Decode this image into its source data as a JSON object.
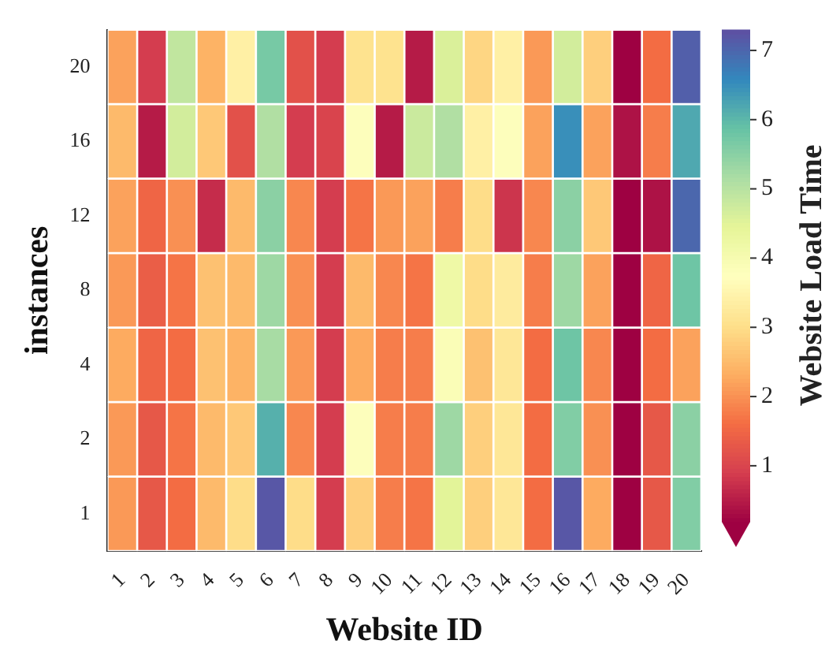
{
  "chart_data": {
    "type": "heatmap",
    "xlabel": "Website ID",
    "ylabel": "instances",
    "clabel": "Website Load Time",
    "categories": [
      "1",
      "2",
      "3",
      "4",
      "5",
      "6",
      "7",
      "8",
      "9",
      "10",
      "11",
      "12",
      "13",
      "14",
      "15",
      "16",
      "17",
      "18",
      "19",
      "20"
    ],
    "y_categories": [
      "20",
      "16",
      "12",
      "8",
      "4",
      "2",
      "1"
    ],
    "cells": [
      [
        2.2,
        0.9,
        4.9,
        2.4,
        3.4,
        5.7,
        1.2,
        0.9,
        3.1,
        3.1,
        0.5,
        4.6,
        2.9,
        3.4,
        2.1,
        4.7,
        2.8,
        0.2,
        1.6,
        7.1
      ],
      [
        2.5,
        0.5,
        4.7,
        2.7,
        1.2,
        5.1,
        0.9,
        1.0,
        3.8,
        0.5,
        4.8,
        5.1,
        3.4,
        3.8,
        2.2,
        6.5,
        2.2,
        0.4,
        1.8,
        6.2
      ],
      [
        2.2,
        1.5,
        2.0,
        0.7,
        2.5,
        5.5,
        1.9,
        0.9,
        1.7,
        2.1,
        2.2,
        1.8,
        3.0,
        0.8,
        1.9,
        5.5,
        2.7,
        0.2,
        0.4,
        7.0
      ],
      [
        2.1,
        1.4,
        1.7,
        2.6,
        2.5,
        5.3,
        2.0,
        0.9,
        2.5,
        1.9,
        1.7,
        4.2,
        3.0,
        3.3,
        1.8,
        5.3,
        2.2,
        0.2,
        1.5,
        5.8
      ],
      [
        2.3,
        1.5,
        1.6,
        2.6,
        2.4,
        5.2,
        2.1,
        0.9,
        2.3,
        1.8,
        1.8,
        3.9,
        2.6,
        3.2,
        1.6,
        5.8,
        1.9,
        0.2,
        1.6,
        2.2
      ],
      [
        2.1,
        1.3,
        1.7,
        2.5,
        2.7,
        6.1,
        1.9,
        0.9,
        3.8,
        1.8,
        1.8,
        5.3,
        2.8,
        3.2,
        1.6,
        5.6,
        2.0,
        0.2,
        1.3,
        5.5
      ],
      [
        2.1,
        1.3,
        1.6,
        2.5,
        3.0,
        7.2,
        3.0,
        0.9,
        2.8,
        1.8,
        1.7,
        4.5,
        2.8,
        3.2,
        1.6,
        7.2,
        2.3,
        0.2,
        1.3,
        5.6
      ]
    ],
    "clim": [
      0.2,
      7.3
    ],
    "cticks": [
      1,
      2,
      3,
      4,
      5,
      6,
      7
    ]
  }
}
